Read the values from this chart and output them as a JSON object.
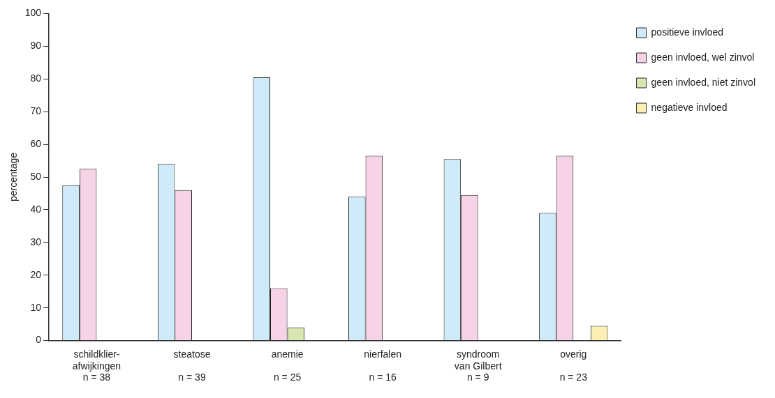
{
  "chart_data": {
    "type": "bar",
    "ylabel": "percentage",
    "categories": [
      "schildklier-\nafwijkingen\nn = 38",
      "steatose\n\nn = 39",
      "anemie\n\nn = 25",
      "nierfalen\n\nn = 16",
      "syndroom\nvan Gilbert\nn = 9",
      "overig\n\nn = 23"
    ],
    "series": [
      {
        "name": "positieve invloed",
        "color": "#cfeaf8",
        "values": [
          47.5,
          54,
          80.5,
          44,
          55.5,
          39
        ]
      },
      {
        "name": "geen invloed, wel zinvol",
        "color": "#f6d3e6",
        "values": [
          52.5,
          46,
          16,
          56.5,
          44.5,
          56.5
        ]
      },
      {
        "name": "geen invloed, niet zinvol",
        "color": "#d8e6b0",
        "values": [
          null,
          null,
          4,
          null,
          null,
          null
        ]
      },
      {
        "name": "negatieve invloed",
        "color": "#fcefb4",
        "values": [
          null,
          null,
          null,
          null,
          null,
          4.5
        ]
      }
    ],
    "ylim": [
      0,
      100
    ],
    "yticks": [
      0,
      10,
      20,
      30,
      40,
      50,
      60,
      70,
      80,
      90,
      100
    ],
    "grid": false,
    "legend": "top right"
  }
}
